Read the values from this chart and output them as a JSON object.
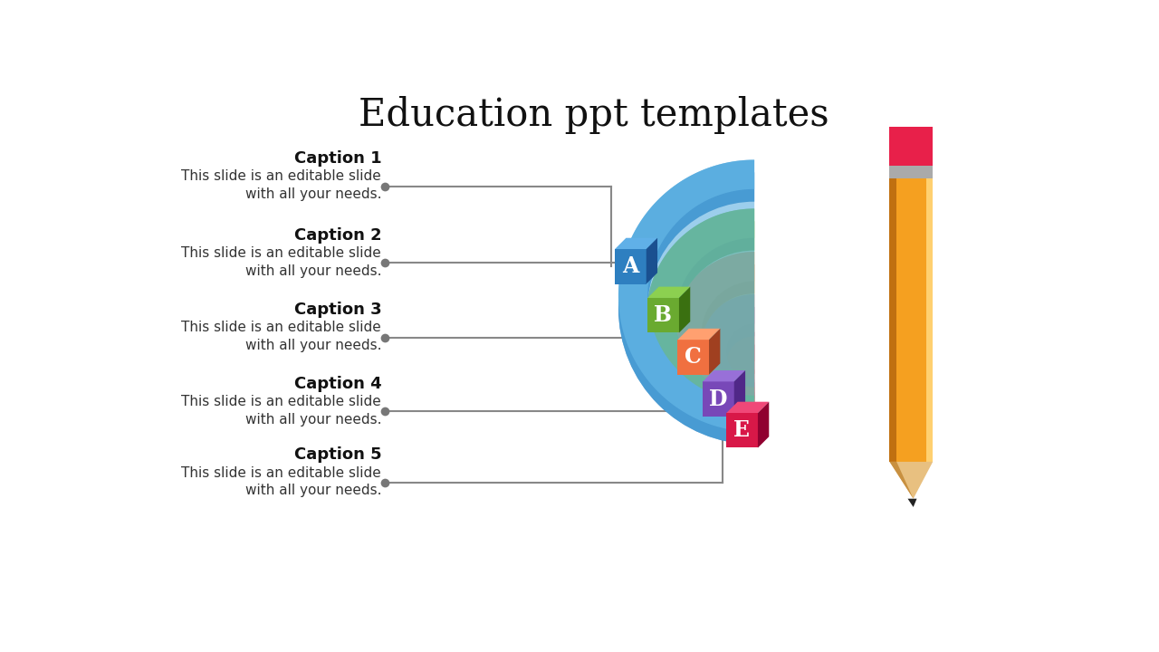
{
  "title": "Education ppt templates",
  "title_fontsize": 30,
  "background_color": "#ffffff",
  "captions": [
    "Caption 1",
    "Caption 2",
    "Caption 3",
    "Caption 4",
    "Caption 5"
  ],
  "caption_text": "This slide is an editable slide\nwith all your needs.",
  "labels": [
    "A",
    "B",
    "C",
    "D",
    "E"
  ],
  "arc_colors": [
    "#2E7FC0",
    "#5A9E2F",
    "#E05A20",
    "#7040A8",
    "#C41040"
  ],
  "arc_light": [
    "#5BAEE0",
    "#78C040",
    "#FF8050",
    "#9A60D0",
    "#E83060"
  ],
  "arc_dark": [
    "#1A4A80",
    "#2E6010",
    "#903010",
    "#402070",
    "#800828"
  ],
  "block_colors": [
    "#2E7FC0",
    "#6AAA30",
    "#F07040",
    "#7848B8",
    "#D81848"
  ],
  "block_light": [
    "#60B0E8",
    "#8CD050",
    "#FFA070",
    "#9870D8",
    "#F04878"
  ],
  "block_dark": [
    "#1A5090",
    "#3A7010",
    "#A04020",
    "#502888",
    "#900030"
  ],
  "connector_color": "#888888",
  "pencil_body": "#F5A020",
  "pencil_body_light": "#FFD070",
  "pencil_body_dark": "#C07010",
  "pencil_eraser": "#E8204A",
  "pencil_band": "#AAAAAA",
  "pencil_tip": "#222222",
  "pencil_wood": "#E8C080"
}
